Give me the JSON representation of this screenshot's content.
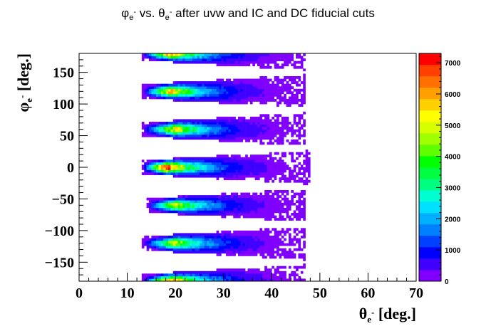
{
  "chart_data": {
    "type": "heatmap",
    "title": {
      "phi_symbol": "φ",
      "phi_sub": "e",
      "phi_sup": "-",
      "vs": " vs. ",
      "theta_symbol": "θ",
      "theta_sub": "e",
      "theta_sup": "-",
      "rest": " after uvw and IC and DC fiducial cuts"
    },
    "xlabel": {
      "symbol": "θ",
      "sub": "e",
      "sup": "-",
      "rest": " [deg.]"
    },
    "ylabel": {
      "symbol": "φ",
      "sub": "e",
      "sup": "-",
      "rest": " [deg.]"
    },
    "xlim": [
      0,
      70
    ],
    "ylim": [
      -180,
      180
    ],
    "zlim": [
      0,
      7300
    ],
    "x_ticks": [
      0,
      10,
      20,
      30,
      40,
      50,
      60,
      70
    ],
    "y_ticks": [
      -150,
      -100,
      -50,
      0,
      50,
      100,
      150
    ],
    "z_ticks": [
      0,
      1000,
      2000,
      3000,
      4000,
      5000,
      6000,
      7000
    ],
    "grid": false,
    "sectors": [
      {
        "phi_center": 180,
        "theta_start": 13,
        "theta_peak": 19,
        "theta_end": 44,
        "peak": 6500
      },
      {
        "phi_center": 120,
        "theta_start": 13,
        "theta_peak": 19,
        "theta_end": 44,
        "peak": 6000
      },
      {
        "phi_center": 60,
        "theta_start": 13,
        "theta_peak": 20,
        "theta_end": 44,
        "peak": 5400
      },
      {
        "phi_center": 0,
        "theta_start": 13,
        "theta_peak": 18,
        "theta_end": 45,
        "peak": 7300
      },
      {
        "phi_center": -60,
        "theta_start": 14,
        "theta_peak": 20,
        "theta_end": 44,
        "peak": 5200
      },
      {
        "phi_center": -120,
        "theta_start": 13,
        "theta_peak": 20,
        "theta_end": 44,
        "peak": 5100
      },
      {
        "phi_center": -180,
        "theta_start": 13,
        "theta_peak": 19,
        "theta_end": 44,
        "peak": 6800
      }
    ],
    "palette": [
      "#8000ff",
      "#4000ff",
      "#0000ff",
      "#0040ff",
      "#0080ff",
      "#00b0ff",
      "#00e0ff",
      "#00ffd0",
      "#00ff80",
      "#00ff40",
      "#00ff00",
      "#60ff00",
      "#a0ff00",
      "#d8ff00",
      "#ffff00",
      "#ffd000",
      "#ffa000",
      "#ff7000",
      "#ff4000",
      "#ff0000"
    ]
  }
}
